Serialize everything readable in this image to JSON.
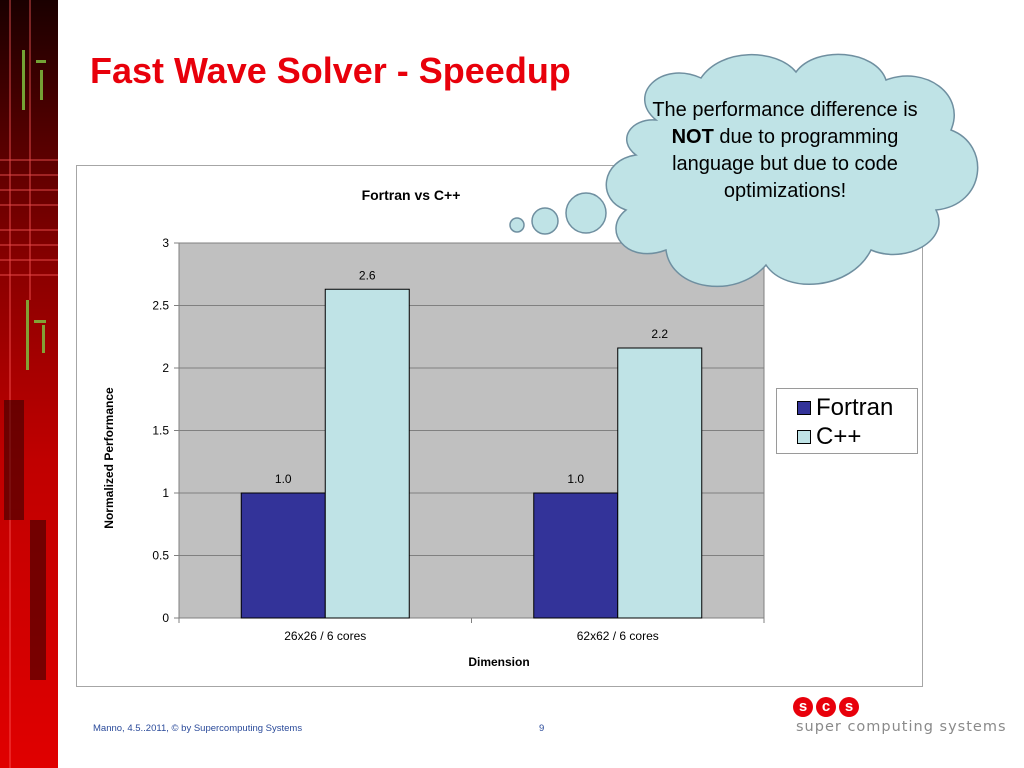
{
  "slide": {
    "title": "Fast Wave Solver - Speedup"
  },
  "callout": {
    "text_before": "The performance difference is ",
    "emphasis": "NOT",
    "text_after": " due to programming language but due to code optimizations!",
    "fill_color": "#bfe3e6"
  },
  "chart_data": {
    "type": "bar",
    "title": "Fortran vs C++",
    "xlabel": "Dimension",
    "ylabel": "Normalized Performance",
    "categories": [
      "26x26 / 6 cores",
      "62x62 / 6 cores"
    ],
    "series": [
      {
        "name": "Fortran",
        "values": [
          1.0,
          1.0
        ],
        "labels": [
          "1.0",
          "1.0"
        ],
        "color": "#333399"
      },
      {
        "name": "C++",
        "values": [
          2.63,
          2.16
        ],
        "labels": [
          "2.6",
          "2.2"
        ],
        "color": "#bfe3e6"
      }
    ],
    "ylim": [
      0,
      3
    ],
    "yticks": [
      "0",
      "0.5",
      "1",
      "1.5",
      "2",
      "2.5",
      "3"
    ],
    "grid": true,
    "plot_background": "#c0c0c0",
    "legend_position": "right"
  },
  "footer": {
    "text": "Manno, 4.5..2011, © by Supercomputing Systems",
    "page_number": "9"
  },
  "logo": {
    "letters": [
      "s",
      "c",
      "s"
    ],
    "text": "super computing systems"
  }
}
